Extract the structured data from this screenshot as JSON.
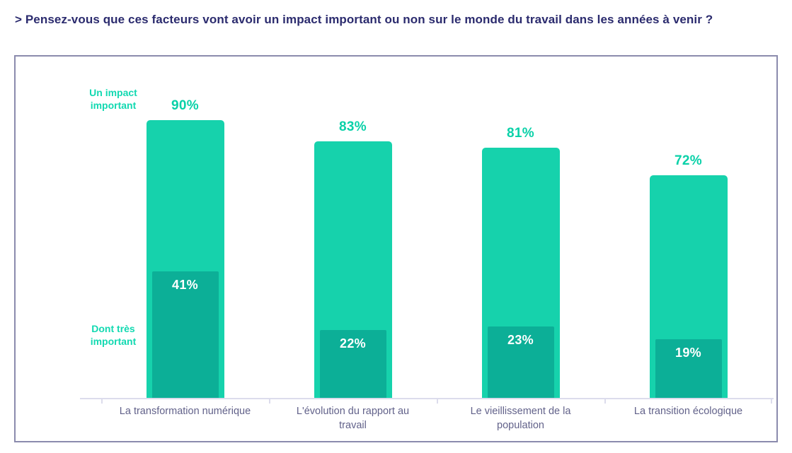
{
  "header": {
    "title": "> Pensez-vous que ces facteurs vont avoir un impact important ou non sur le monde du travail dans les années à venir ?"
  },
  "colors": {
    "title": "#2b2b6e",
    "border": "#8b8bad",
    "outer_bar": "#16d2ac",
    "inner_bar": "#0caf97",
    "value_label": "#09d1a8",
    "side_label": "#12d9b1",
    "inner_value_label": "#ffffff",
    "category_label": "#62628a",
    "axis": "#dcdcec"
  },
  "chart_data": {
    "type": "bar",
    "title": "> Pensez-vous que ces facteurs vont avoir un impact important ou non sur le monde du travail dans les années à venir ?",
    "categories": [
      "La transformation numérique",
      "L'évolution du rapport au travail",
      "Le vieillissement de la population",
      "La transition écologique"
    ],
    "series": [
      {
        "name": "Un impact important",
        "values": [
          90,
          83,
          81,
          72
        ],
        "color": "#16d2ac",
        "label_suffix": "%"
      },
      {
        "name": "Dont très important",
        "values": [
          41,
          22,
          23,
          19
        ],
        "color": "#0caf97",
        "label_suffix": "%"
      }
    ],
    "ylim": [
      0,
      100
    ],
    "grid": false,
    "legend_position": "left, inline with plot",
    "value_labels_shown": [
      "90%",
      "83%",
      "81%",
      "72%",
      "41%",
      "22%",
      "23%",
      "19%"
    ]
  }
}
